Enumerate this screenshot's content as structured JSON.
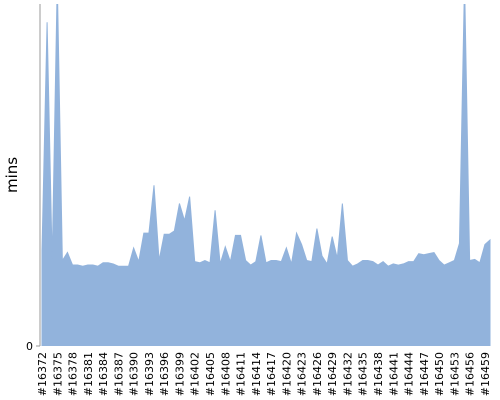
{
  "chart_data": {
    "type": "area",
    "y_label": "mins",
    "categories": [
      "#16372",
      null,
      null,
      "#16375",
      null,
      null,
      "#16378",
      null,
      null,
      "#16381",
      null,
      null,
      "#16384",
      null,
      null,
      "#16387",
      null,
      null,
      "#16390",
      null,
      null,
      "#16393",
      null,
      null,
      "#16396",
      null,
      null,
      "#16399",
      null,
      null,
      "#16402",
      null,
      null,
      "#16405",
      null,
      null,
      "#16408",
      null,
      null,
      "#16411",
      null,
      null,
      "#16414",
      null,
      null,
      "#16417",
      null,
      null,
      "#16420",
      null,
      null,
      "#16423",
      null,
      null,
      "#16426",
      null,
      null,
      "#16429",
      null,
      null,
      "#16432",
      null,
      null,
      "#16435",
      null,
      null,
      "#16438",
      null,
      null,
      "#16441",
      null,
      null,
      "#16444",
      null,
      null,
      "#16447",
      null,
      null,
      "#16450",
      null,
      null,
      "#16453",
      null,
      null,
      "#16456",
      null,
      null,
      "#16459",
      null
    ],
    "values": [
      8.4,
      28.4,
      7.4,
      32,
      7.5,
      8.2,
      7.1,
      7.1,
      7.0,
      7.1,
      7.1,
      7.0,
      7.3,
      7.3,
      7.2,
      7.0,
      7.0,
      7.0,
      8.6,
      7.4,
      9.9,
      9.9,
      14.1,
      7.5,
      9.8,
      9.8,
      10.1,
      12.5,
      11.0,
      13.1,
      7.4,
      7.3,
      7.5,
      7.3,
      11.9,
      7.2,
      8.7,
      7.4,
      9.7,
      9.7,
      7.5,
      7.1,
      7.4,
      9.7,
      7.3,
      7.5,
      7.5,
      7.4,
      8.6,
      7.2,
      9.9,
      8.9,
      7.5,
      7.4,
      10.3,
      7.9,
      7.2,
      9.6,
      7.7,
      12.5,
      7.5,
      7.0,
      7.2,
      7.5,
      7.5,
      7.4,
      7.1,
      7.4,
      7.0,
      7.2,
      7.1,
      7.2,
      7.4,
      7.4,
      8.1,
      8.0,
      8.1,
      8.2,
      7.5,
      7.1,
      7.3,
      7.5,
      9.0,
      32,
      7.5,
      7.6,
      7.3,
      8.9,
      9.3
    ],
    "color": "#92b3dc",
    "ylim": [
      0,
      30
    ],
    "yticks": [
      0
    ]
  }
}
